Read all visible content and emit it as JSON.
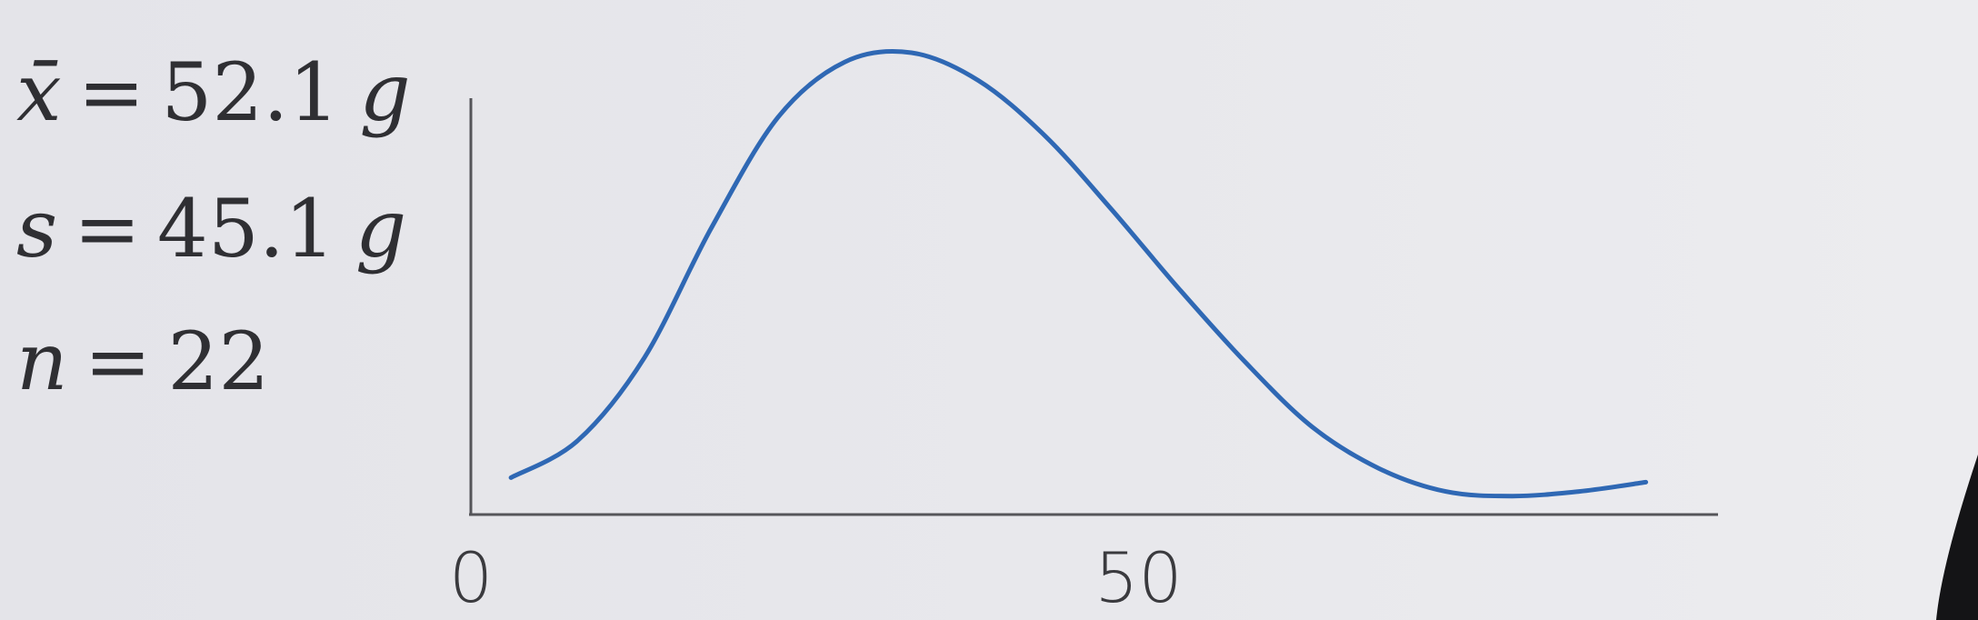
{
  "stats": {
    "mean": {
      "symbol": "x̄",
      "equals": "=",
      "value": "52.1",
      "unit": "g"
    },
    "sd": {
      "symbol": "s",
      "equals": "=",
      "value": "45.1",
      "unit": "g"
    },
    "n": {
      "symbol": "n",
      "equals": "=",
      "value": "22"
    }
  },
  "chart_data": {
    "type": "line",
    "title": "",
    "xlabel": "",
    "ylabel": "",
    "xlim": [
      0,
      90
    ],
    "ylim": [
      0,
      1
    ],
    "x_ticks": [
      0,
      50
    ],
    "x_tick_labels": [
      "0",
      "50"
    ],
    "grid": false,
    "series": [
      {
        "color": "#2f68b4",
        "x": [
          3,
          8,
          13,
          18,
          23,
          28,
          33,
          38,
          43,
          48,
          53,
          58,
          63,
          68,
          73,
          78,
          83,
          88
        ],
        "y": [
          0.08,
          0.16,
          0.34,
          0.62,
          0.86,
          0.98,
          1.0,
          0.94,
          0.82,
          0.66,
          0.49,
          0.33,
          0.19,
          0.1,
          0.05,
          0.04,
          0.05,
          0.07
        ]
      }
    ]
  },
  "colors": {
    "background": "#e6e6ea",
    "axis": "#555559",
    "curve": "#2f68b4",
    "text": "#2f2f33"
  }
}
